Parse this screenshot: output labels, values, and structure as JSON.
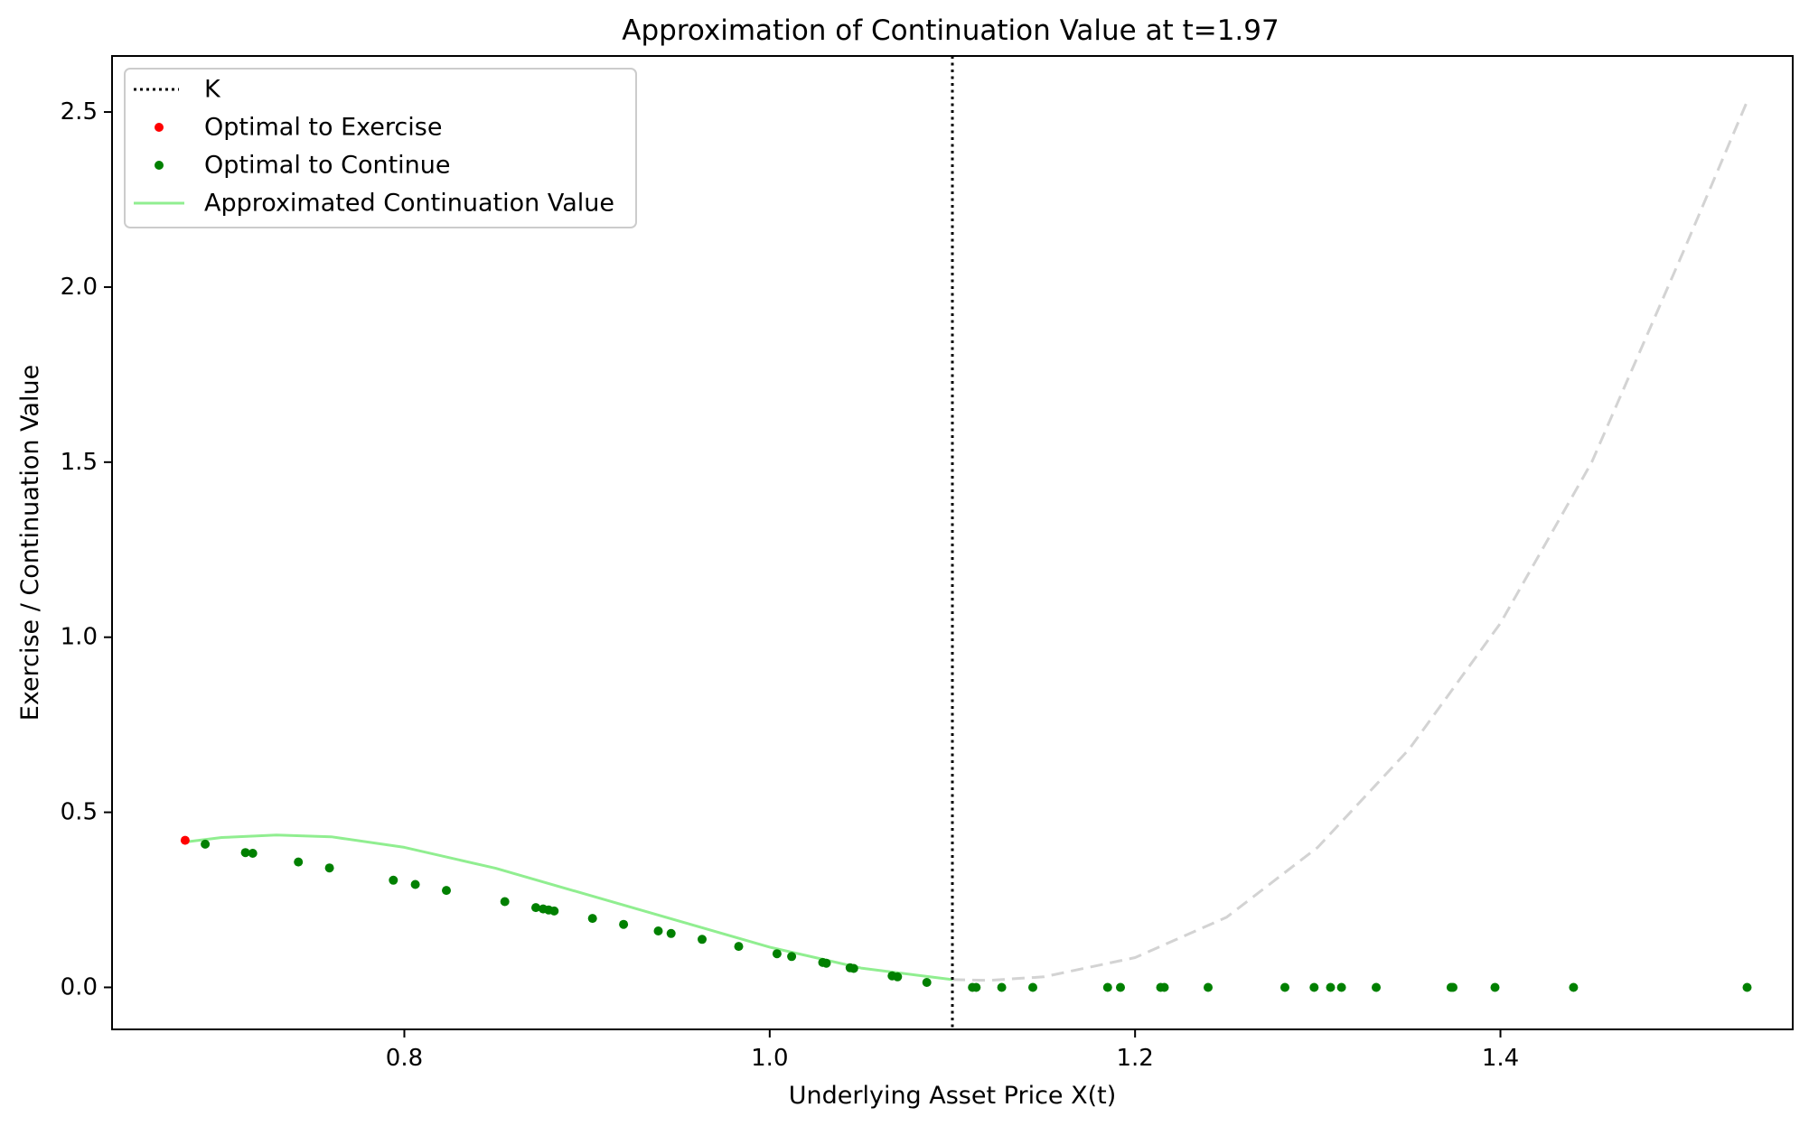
{
  "chart_data": {
    "type": "scatter",
    "title": "Approximation of Continuation Value at t=1.97",
    "xlabel": "Underlying Asset Price X(t)",
    "ylabel": "Exercise / Continuation Value",
    "xlim": [
      0.64,
      1.56
    ],
    "ylim": [
      -0.12,
      2.66
    ],
    "xticks": [
      0.8,
      1.0,
      1.2,
      1.4
    ],
    "xtick_labels": [
      "0.8",
      "1.0",
      "1.2",
      "1.4"
    ],
    "yticks": [
      0.0,
      0.5,
      1.0,
      1.5,
      2.0,
      2.5
    ],
    "ytick_labels": [
      "0.0",
      "0.5",
      "1.0",
      "1.5",
      "2.0",
      "2.5"
    ],
    "grid": false,
    "legend_position": "top-left",
    "strike": {
      "name": "K",
      "x": 1.1,
      "color": "#000000",
      "style": "dotted"
    },
    "series": [
      {
        "name": "Optimal to Exercise",
        "kind": "points",
        "color": "#ff0000",
        "x": [
          0.68
        ],
        "y": [
          0.42
        ]
      },
      {
        "name": "Optimal to Continue",
        "kind": "points",
        "color": "#008000",
        "x": [
          0.691,
          0.713,
          0.717,
          0.742,
          0.759,
          0.794,
          0.806,
          0.823,
          0.855,
          0.872,
          0.876,
          0.879,
          0.882,
          0.903,
          0.92,
          0.939,
          0.946,
          0.963,
          0.983,
          1.004,
          1.012,
          1.029,
          1.031,
          1.044,
          1.046,
          1.067,
          1.07,
          1.086,
          1.111,
          1.113,
          1.127,
          1.144,
          1.185,
          1.192,
          1.214,
          1.216,
          1.24,
          1.282,
          1.298,
          1.307,
          1.313,
          1.332,
          1.373,
          1.374,
          1.397,
          1.44,
          1.535
        ],
        "y": [
          0.409,
          0.385,
          0.383,
          0.358,
          0.341,
          0.306,
          0.294,
          0.277,
          0.245,
          0.228,
          0.224,
          0.221,
          0.218,
          0.197,
          0.18,
          0.161,
          0.154,
          0.137,
          0.117,
          0.096,
          0.088,
          0.071,
          0.069,
          0.056,
          0.054,
          0.033,
          0.03,
          0.014,
          0,
          0,
          0,
          0,
          0,
          0,
          0,
          0,
          0,
          0,
          0,
          0,
          0,
          0,
          0,
          0,
          0,
          0,
          0
        ]
      },
      {
        "name": "Approximated Continuation Value",
        "kind": "line",
        "color": "#90ee90",
        "x": [
          0.68,
          0.7,
          0.73,
          0.76,
          0.8,
          0.85,
          0.9,
          0.95,
          1.0,
          1.05,
          1.1
        ],
        "y": [
          0.415,
          0.428,
          0.435,
          0.43,
          0.4,
          0.34,
          0.265,
          0.19,
          0.115,
          0.055,
          0.022
        ]
      },
      {
        "kind": "line",
        "color": "#d3d3d3",
        "style": "dashed",
        "x": [
          1.1,
          1.12,
          1.15,
          1.2,
          1.25,
          1.3,
          1.35,
          1.4,
          1.45,
          1.5,
          1.535
        ],
        "y": [
          0.022,
          0.02,
          0.03,
          0.085,
          0.2,
          0.4,
          0.68,
          1.04,
          1.5,
          2.1,
          2.53
        ]
      }
    ]
  }
}
